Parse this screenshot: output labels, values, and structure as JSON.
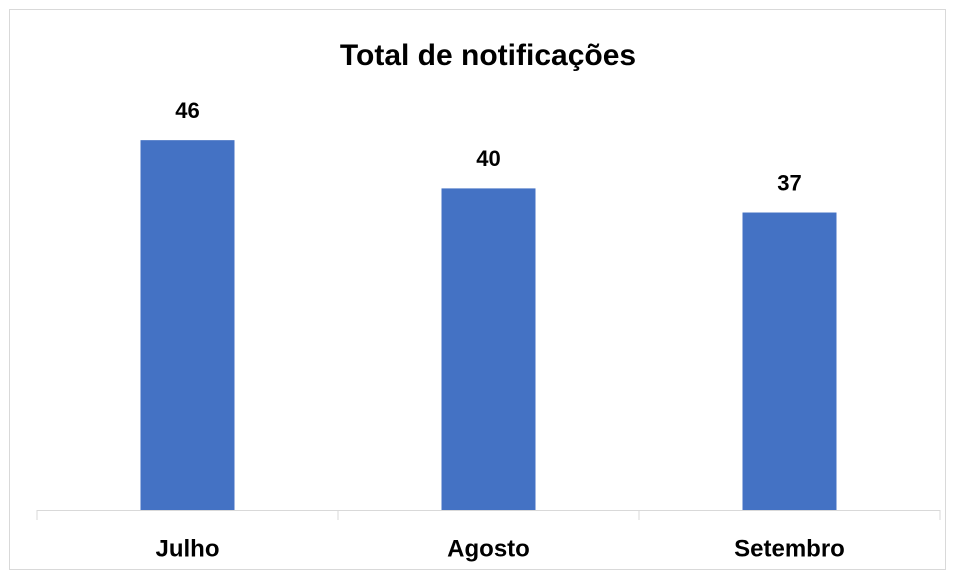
{
  "chart_data": {
    "type": "bar",
    "title": "Total de notificações",
    "categories": [
      "Julho",
      "Agosto",
      "Setembro"
    ],
    "values": [
      46,
      40,
      37
    ],
    "color": "#4472c4",
    "ylim": [
      0,
      50
    ]
  }
}
